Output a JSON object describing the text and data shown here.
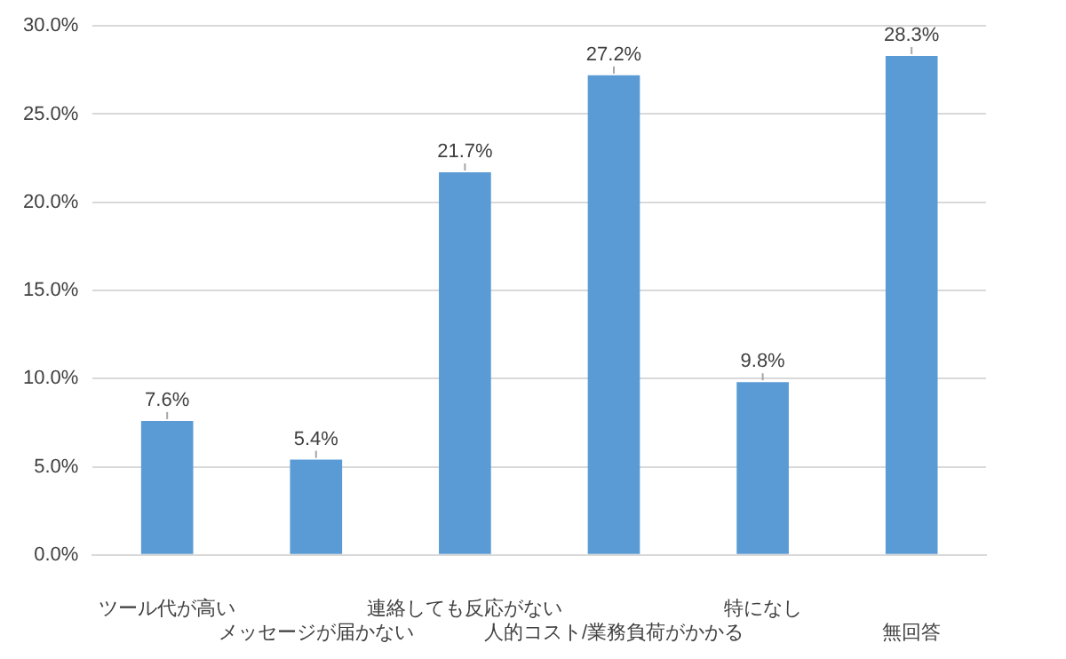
{
  "chart_data": {
    "type": "bar",
    "categories": [
      "ツール代が高い",
      "メッセージが届かない",
      "連絡しても反応がない",
      "人的コスト/業務負荷がかかる",
      "特になし",
      "無回答"
    ],
    "values": [
      7.6,
      5.4,
      21.7,
      27.2,
      9.8,
      28.3
    ],
    "value_labels": [
      "7.6%",
      "5.4%",
      "21.7%",
      "27.2%",
      "9.8%",
      "28.3%"
    ],
    "color": "#5b9bd5",
    "ylim": [
      0,
      30
    ],
    "yticks": [
      {
        "value": 0,
        "label": "0.0%"
      },
      {
        "value": 5,
        "label": "5.0%"
      },
      {
        "value": 10,
        "label": "10.0%"
      },
      {
        "value": 15,
        "label": "15.0%"
      },
      {
        "value": 20,
        "label": "20.0%"
      },
      {
        "value": 25,
        "label": "25.0%"
      },
      {
        "value": 30,
        "label": "30.0%"
      }
    ],
    "grid": "y",
    "legend": false
  }
}
